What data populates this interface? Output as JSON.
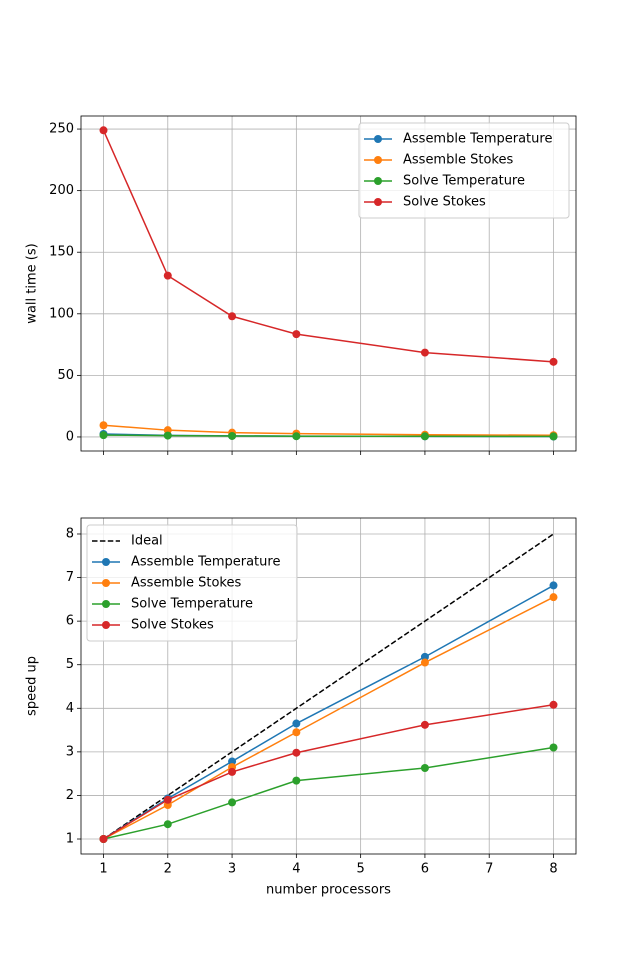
{
  "chart_data": [
    {
      "type": "line",
      "y_label": "wall time (s)",
      "x": [
        1,
        2,
        3,
        4,
        6,
        8
      ],
      "xlim": [
        0.65,
        8.35
      ],
      "xticks": [
        1,
        2,
        3,
        4,
        5,
        6,
        7,
        8
      ],
      "xtick_labels": false,
      "ylim": [
        -11.4,
        260.6
      ],
      "yticks": [
        0,
        50,
        100,
        150,
        200,
        250
      ],
      "grid": true,
      "legend": "upper right",
      "series": [
        {
          "name": "Assemble Temperature",
          "color": "#1f77b4",
          "marker": "circle",
          "linestyle": "solid",
          "values": [
            2.4,
            1.3,
            0.9,
            0.7,
            0.5,
            0.35
          ]
        },
        {
          "name": "Assemble Stokes",
          "color": "#ff7f0e",
          "marker": "circle",
          "linestyle": "solid",
          "values": [
            9.5,
            5.5,
            3.5,
            2.7,
            1.8,
            1.4
          ]
        },
        {
          "name": "Solve Temperature",
          "color": "#2ca02c",
          "marker": "circle",
          "linestyle": "solid",
          "values": [
            1.5,
            1.1,
            0.8,
            0.6,
            0.55,
            0.45
          ]
        },
        {
          "name": "Solve Stokes",
          "color": "#d62728",
          "marker": "circle",
          "linestyle": "solid",
          "values": [
            249,
            131,
            98,
            83.5,
            68.5,
            61
          ]
        }
      ]
    },
    {
      "type": "line",
      "x_label": "number processors",
      "y_label": "speed up",
      "x": [
        1,
        2,
        3,
        4,
        6,
        8
      ],
      "xlim": [
        0.65,
        8.35
      ],
      "xticks": [
        1,
        2,
        3,
        4,
        5,
        6,
        7,
        8
      ],
      "xtick_labels": true,
      "ylim": [
        0.656,
        8.367
      ],
      "yticks": [
        1,
        2,
        3,
        4,
        5,
        6,
        7,
        8
      ],
      "grid": true,
      "legend": "upper left",
      "series": [
        {
          "name": "Ideal",
          "color": "#000000",
          "marker": "none",
          "linestyle": "dashed",
          "values": [
            1,
            2,
            3,
            4,
            6,
            8
          ]
        },
        {
          "name": "Assemble Temperature",
          "color": "#1f77b4",
          "marker": "circle",
          "linestyle": "solid",
          "values": [
            1,
            1.93,
            2.78,
            3.65,
            5.18,
            6.82
          ]
        },
        {
          "name": "Assemble Stokes",
          "color": "#ff7f0e",
          "marker": "circle",
          "linestyle": "solid",
          "values": [
            1,
            1.78,
            2.65,
            3.45,
            5.05,
            6.55
          ]
        },
        {
          "name": "Solve Temperature",
          "color": "#2ca02c",
          "marker": "circle",
          "linestyle": "solid",
          "values": [
            1,
            1.34,
            1.84,
            2.34,
            2.63,
            3.1
          ]
        },
        {
          "name": "Solve Stokes",
          "color": "#d62728",
          "marker": "circle",
          "linestyle": "solid",
          "values": [
            1,
            1.9,
            2.54,
            2.98,
            3.62,
            4.08
          ]
        }
      ]
    }
  ]
}
